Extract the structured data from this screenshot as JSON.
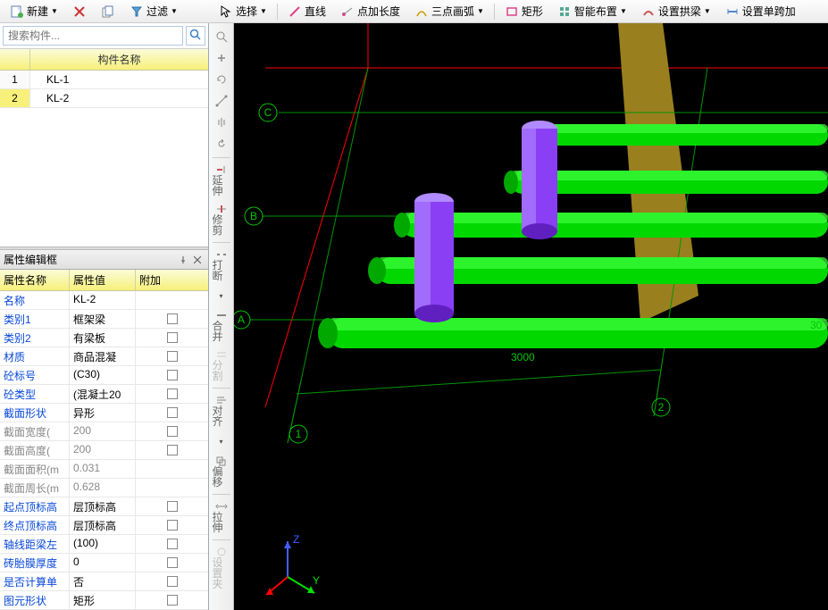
{
  "toolbar_left": {
    "new_btn": "新建",
    "filter_btn": "过滤"
  },
  "toolbar_right": {
    "select_btn": "选择",
    "line_btn": "直线",
    "point_len_btn": "点加长度",
    "three_pt_arc_btn": "三点画弧",
    "rect_btn": "矩形",
    "smart_layout_btn": "智能布置",
    "set_arch_btn": "设置拱梁",
    "set_single_span_btn": "设置单跨加"
  },
  "search": {
    "placeholder": "搜索构件..."
  },
  "comp_header": "构件名称",
  "components": [
    {
      "idx": "1",
      "name": "KL-1",
      "selected": false
    },
    {
      "idx": "2",
      "name": "KL-2",
      "selected": true
    }
  ],
  "prop_panel": {
    "title": "属性编辑框",
    "headers": {
      "c1": "属性名称",
      "c2": "属性值",
      "c3": "附加"
    }
  },
  "properties": [
    {
      "k": "名称",
      "v": "KL-2",
      "chk": false,
      "gray": false
    },
    {
      "k": "类别1",
      "v": "框架梁",
      "chk": true,
      "gray": false
    },
    {
      "k": "类别2",
      "v": "有梁板",
      "chk": true,
      "gray": false
    },
    {
      "k": "材质",
      "v": "商品混凝",
      "chk": true,
      "gray": false
    },
    {
      "k": "砼标号",
      "v": "(C30)",
      "chk": true,
      "gray": false
    },
    {
      "k": "砼类型",
      "v": "(混凝土20",
      "chk": true,
      "gray": false
    },
    {
      "k": "截面形状",
      "v": "异形",
      "chk": true,
      "gray": false
    },
    {
      "k": "截面宽度(",
      "v": "200",
      "chk": true,
      "gray": true
    },
    {
      "k": "截面高度(",
      "v": "200",
      "chk": true,
      "gray": true
    },
    {
      "k": "截面面积(m",
      "v": "0.031",
      "chk": false,
      "gray": true
    },
    {
      "k": "截面周长(m",
      "v": "0.628",
      "chk": false,
      "gray": true
    },
    {
      "k": "起点顶标高",
      "v": "层顶标高",
      "chk": true,
      "gray": false
    },
    {
      "k": "终点顶标高",
      "v": "层顶标高",
      "chk": true,
      "gray": false
    },
    {
      "k": "轴线距梁左",
      "v": "(100)",
      "chk": true,
      "gray": false
    },
    {
      "k": "砖胎膜厚度",
      "v": "0",
      "chk": true,
      "gray": false
    },
    {
      "k": "是否计算单",
      "v": "否",
      "chk": true,
      "gray": false
    },
    {
      "k": "图元形状",
      "v": "矩形",
      "chk": true,
      "gray": false
    }
  ],
  "vtool_labels": {
    "extend": "延伸",
    "trim": "修剪",
    "break": "打断",
    "merge": "合并",
    "split": "分割",
    "align": "对齐",
    "offset": "偏移",
    "stretch": "拉伸",
    "settings": "设置夹"
  },
  "viewport": {
    "bg": "#000000",
    "grid_color": "#ff0000",
    "axis_color": "#00b400",
    "beam_color": "#00e000",
    "column_color": "#8a3ff5",
    "wall_color": "#b89a2f",
    "text_color": "#00c800",
    "dim_text": "3000",
    "dim_text2": "30",
    "axis_labels": {
      "a": "A",
      "b": "B",
      "c": "C",
      "n1": "1",
      "n2": "2"
    },
    "ucs": {
      "z": "Z",
      "y": "Y",
      "z_color": "#4060ff",
      "y_color": "#00e000",
      "x_color": "#ff0000"
    }
  }
}
